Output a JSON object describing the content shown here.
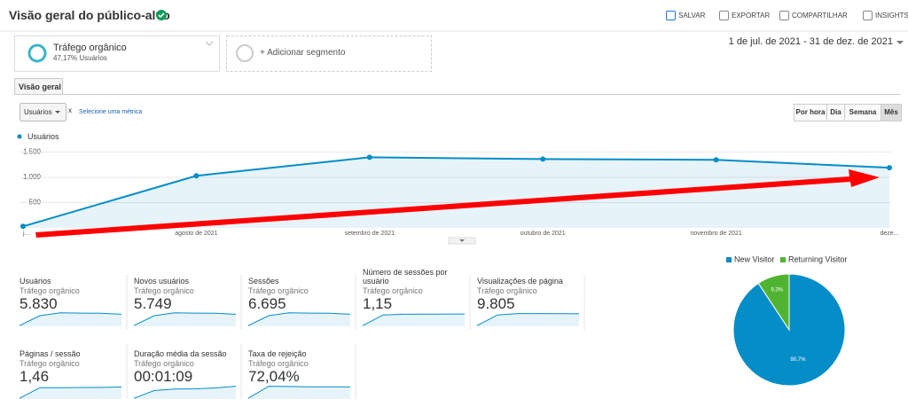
{
  "header": {
    "title": "Visão geral do público-alvo",
    "actions": [
      "SALVAR",
      "EXPORTAR",
      "COMPARTILHAR",
      "INSIGHTS"
    ]
  },
  "segments": {
    "active": {
      "name": "Tráfego orgânico",
      "detail": "47,17% Usuários"
    },
    "add": "+ Adicionar segmento"
  },
  "date_range": "1 de jul. de 2021 - 31 de dez. de 2021",
  "tab": "Visão geral",
  "metric_picker": {
    "metric": "Usuários",
    "remove": "x",
    "add": "Selecione uma métrica"
  },
  "granularity": {
    "options": [
      "Por hora",
      "Dia",
      "Semana",
      "Mês"
    ],
    "selected": 3
  },
  "line_chart": {
    "type": "area",
    "categories": [
      "j...",
      "agosto de 2021",
      "setembro de 2021",
      "outubro de 2021",
      "novembro de 2021",
      "deze..."
    ],
    "series": [
      {
        "name": "Usuários",
        "color": "#058dc7",
        "values": [
          30,
          1030,
          1395,
          1360,
          1345,
          1190
        ]
      }
    ],
    "ylim": [
      0,
      1700
    ],
    "yticks": [
      500,
      {
        "value": 1000,
        "label": "1.000"
      },
      {
        "value": 1500,
        "label": "1.500"
      }
    ],
    "grid": true
  },
  "trend_lim": [
    0,
    100
  ],
  "metrics": [
    {
      "label": "Usuários",
      "segment": "Tráfego orgânico",
      "value": "5.830",
      "trend": [
        5,
        75,
        95,
        93,
        92,
        85
      ]
    },
    {
      "label": "Novos usuários",
      "segment": "Tráfego orgânico",
      "value": "5.749",
      "trend": [
        5,
        75,
        95,
        93,
        92,
        85
      ]
    },
    {
      "label": "Sessões",
      "segment": "Tráfego orgânico",
      "value": "6.695",
      "trend": [
        5,
        75,
        95,
        93,
        92,
        85
      ]
    },
    {
      "label": "Número de sessões por usuário",
      "segment": "Tráfego orgânico",
      "value": "1,15",
      "trend": [
        5,
        80,
        85,
        86,
        86,
        87
      ]
    },
    {
      "label": "Visualizações de página",
      "segment": "Tráfego orgânico",
      "value": "9.805",
      "trend": [
        5,
        80,
        90,
        90,
        89,
        88
      ]
    },
    {
      "label": "Páginas / sessão",
      "segment": "Tráfego orgânico",
      "value": "1,46",
      "trend": [
        5,
        80,
        80,
        81,
        82,
        85
      ]
    },
    {
      "label": "Duração média da sessão",
      "segment": "Tráfego orgânico",
      "value": "00:01:09",
      "trend": [
        5,
        60,
        70,
        72,
        78,
        90
      ]
    },
    {
      "label": "Taxa de rejeição",
      "segment": "Tráfego orgânico",
      "value": "72,04%",
      "trend": [
        5,
        90,
        88,
        86,
        86,
        85
      ]
    }
  ],
  "pie_chart": {
    "type": "pie",
    "categories": [
      "New Visitor",
      "Returning Visitor"
    ],
    "values": [
      90.7,
      9.3
    ],
    "value_labels": [
      "90,7%",
      "9,3%"
    ],
    "colors": [
      "#058dc7",
      "#50b432"
    ]
  }
}
